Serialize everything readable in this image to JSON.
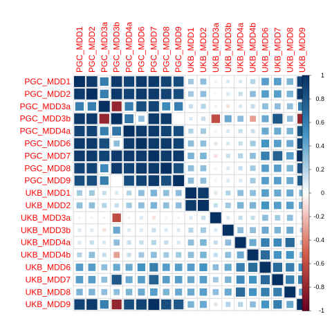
{
  "chart_data": {
    "type": "heatmap",
    "variables": [
      "PGC_MDD1",
      "PGC_MDD2",
      "PGC_MDD3a",
      "PGC_MDD3b",
      "PGC_MDD4a",
      "PGC_MDD6",
      "PGC_MDD7",
      "PGC_MDD8",
      "PGC_MDD9",
      "UKB_MDD1",
      "UKB_MDD2",
      "UKB_MDD3a",
      "UKB_MDD3b",
      "UKB_MDD4a",
      "UKB_MDD4b",
      "UKB_MDD6",
      "UKB_MDD7",
      "UKB_MDD8",
      "UKB_MDD9"
    ],
    "matrix": [
      [
        1.0,
        0.95,
        0.6,
        0.95,
        0.9,
        0.95,
        0.95,
        0.9,
        0.85,
        0.25,
        0.3,
        -0.05,
        0.1,
        0.1,
        0.2,
        0.45,
        0.45,
        0.35,
        0.9
      ],
      [
        0.95,
        1.0,
        0.6,
        0.95,
        0.9,
        0.95,
        0.95,
        0.9,
        0.85,
        0.25,
        0.3,
        0.05,
        0.1,
        0.15,
        0.3,
        0.45,
        0.45,
        0.35,
        0.95
      ],
      [
        0.6,
        0.6,
        1.0,
        -0.8,
        0.6,
        0.85,
        0.9,
        0.55,
        0.6,
        0.15,
        0.2,
        0.05,
        -0.1,
        0.1,
        0.15,
        0.3,
        0.3,
        0.3,
        0.6
      ],
      [
        0.95,
        0.95,
        -0.8,
        1.0,
        0.65,
        0.3,
        0.95,
        0.95,
        0.0,
        0.1,
        0.15,
        -0.6,
        0.4,
        0.3,
        -0.3,
        0.4,
        0.8,
        0.3,
        -0.8
      ],
      [
        0.9,
        0.9,
        0.6,
        0.65,
        1.0,
        0.95,
        0.95,
        0.9,
        0.85,
        0.2,
        0.25,
        0.05,
        0.1,
        0.15,
        0.15,
        0.4,
        0.4,
        0.35,
        0.85
      ],
      [
        0.95,
        0.95,
        0.85,
        0.3,
        0.95,
        1.0,
        0.95,
        0.95,
        0.9,
        0.3,
        0.3,
        0.1,
        0.1,
        0.15,
        0.25,
        0.5,
        0.45,
        0.4,
        0.9
      ],
      [
        0.95,
        0.95,
        0.9,
        0.95,
        0.95,
        0.95,
        1.0,
        0.95,
        0.95,
        0.35,
        0.35,
        -0.1,
        0.15,
        0.2,
        0.3,
        0.6,
        0.75,
        0.45,
        1.0
      ],
      [
        0.9,
        0.9,
        0.55,
        0.95,
        0.9,
        0.95,
        0.95,
        1.0,
        0.85,
        0.3,
        0.3,
        -0.05,
        0.1,
        0.15,
        0.25,
        0.45,
        0.45,
        0.35,
        0.85
      ],
      [
        0.85,
        0.85,
        0.6,
        0.0,
        0.85,
        0.9,
        0.95,
        0.85,
        1.0,
        0.3,
        0.3,
        0.05,
        0.1,
        0.1,
        0.25,
        0.45,
        0.45,
        0.4,
        0.8
      ],
      [
        0.25,
        0.25,
        0.15,
        0.1,
        0.2,
        0.3,
        0.35,
        0.3,
        0.3,
        1.0,
        0.95,
        0.1,
        0.2,
        0.3,
        0.3,
        0.45,
        0.4,
        0.4,
        0.35
      ],
      [
        0.3,
        0.3,
        0.2,
        0.15,
        0.25,
        0.3,
        0.35,
        0.3,
        0.3,
        0.95,
        1.0,
        0.15,
        0.25,
        0.35,
        0.35,
        0.5,
        0.45,
        0.45,
        0.4
      ],
      [
        -0.05,
        0.05,
        0.05,
        -0.6,
        0.05,
        0.1,
        -0.1,
        -0.05,
        0.05,
        0.1,
        0.15,
        1.0,
        0.1,
        0.15,
        0.15,
        0.3,
        0.25,
        0.3,
        0.1
      ],
      [
        0.1,
        0.1,
        -0.1,
        0.4,
        0.1,
        0.1,
        0.15,
        0.1,
        0.1,
        0.2,
        0.25,
        0.1,
        1.0,
        0.3,
        0.3,
        0.4,
        0.35,
        0.4,
        0.2
      ],
      [
        0.1,
        0.15,
        0.1,
        0.3,
        0.15,
        0.15,
        0.2,
        0.15,
        0.1,
        0.3,
        0.35,
        0.15,
        0.3,
        1.0,
        0.4,
        0.6,
        0.55,
        0.7,
        0.2
      ],
      [
        0.2,
        0.3,
        0.15,
        -0.3,
        0.15,
        0.25,
        0.3,
        0.25,
        0.25,
        0.3,
        0.35,
        0.15,
        0.3,
        0.4,
        1.0,
        0.7,
        0.5,
        0.5,
        0.3
      ],
      [
        0.45,
        0.45,
        0.3,
        0.4,
        0.4,
        0.5,
        0.6,
        0.45,
        0.45,
        0.45,
        0.5,
        0.3,
        0.4,
        0.6,
        0.7,
        1.0,
        0.7,
        0.6,
        0.5
      ],
      [
        0.45,
        0.45,
        0.3,
        0.8,
        0.4,
        0.45,
        0.75,
        0.45,
        0.45,
        0.4,
        0.45,
        0.25,
        0.35,
        0.55,
        0.5,
        0.7,
        1.0,
        0.6,
        0.6
      ],
      [
        0.35,
        0.35,
        0.3,
        0.3,
        0.35,
        0.4,
        0.45,
        0.35,
        0.4,
        0.4,
        0.45,
        0.3,
        0.4,
        0.7,
        0.5,
        0.6,
        0.6,
        1.0,
        0.4
      ],
      [
        0.9,
        0.95,
        0.6,
        -0.8,
        0.85,
        0.9,
        1.0,
        0.85,
        0.8,
        0.35,
        0.4,
        0.1,
        0.2,
        0.2,
        0.3,
        0.5,
        0.6,
        0.4,
        1.0
      ]
    ],
    "colorbar_ticks": [
      "1",
      "0.8",
      "0.6",
      "0.4",
      "0.2",
      "0",
      "-0.2",
      "-0.4",
      "-0.6",
      "-0.8",
      "-1"
    ],
    "colorbar_range": [
      -1,
      1
    ],
    "colors": {
      "neg_strong": "#67001f",
      "neg_mid": "#d6604d",
      "neutral": "#ffffff",
      "pos_mid": "#4393c3",
      "pos_strong": "#053061",
      "label": "#ff0000",
      "grid": "#d9d9d9"
    }
  }
}
